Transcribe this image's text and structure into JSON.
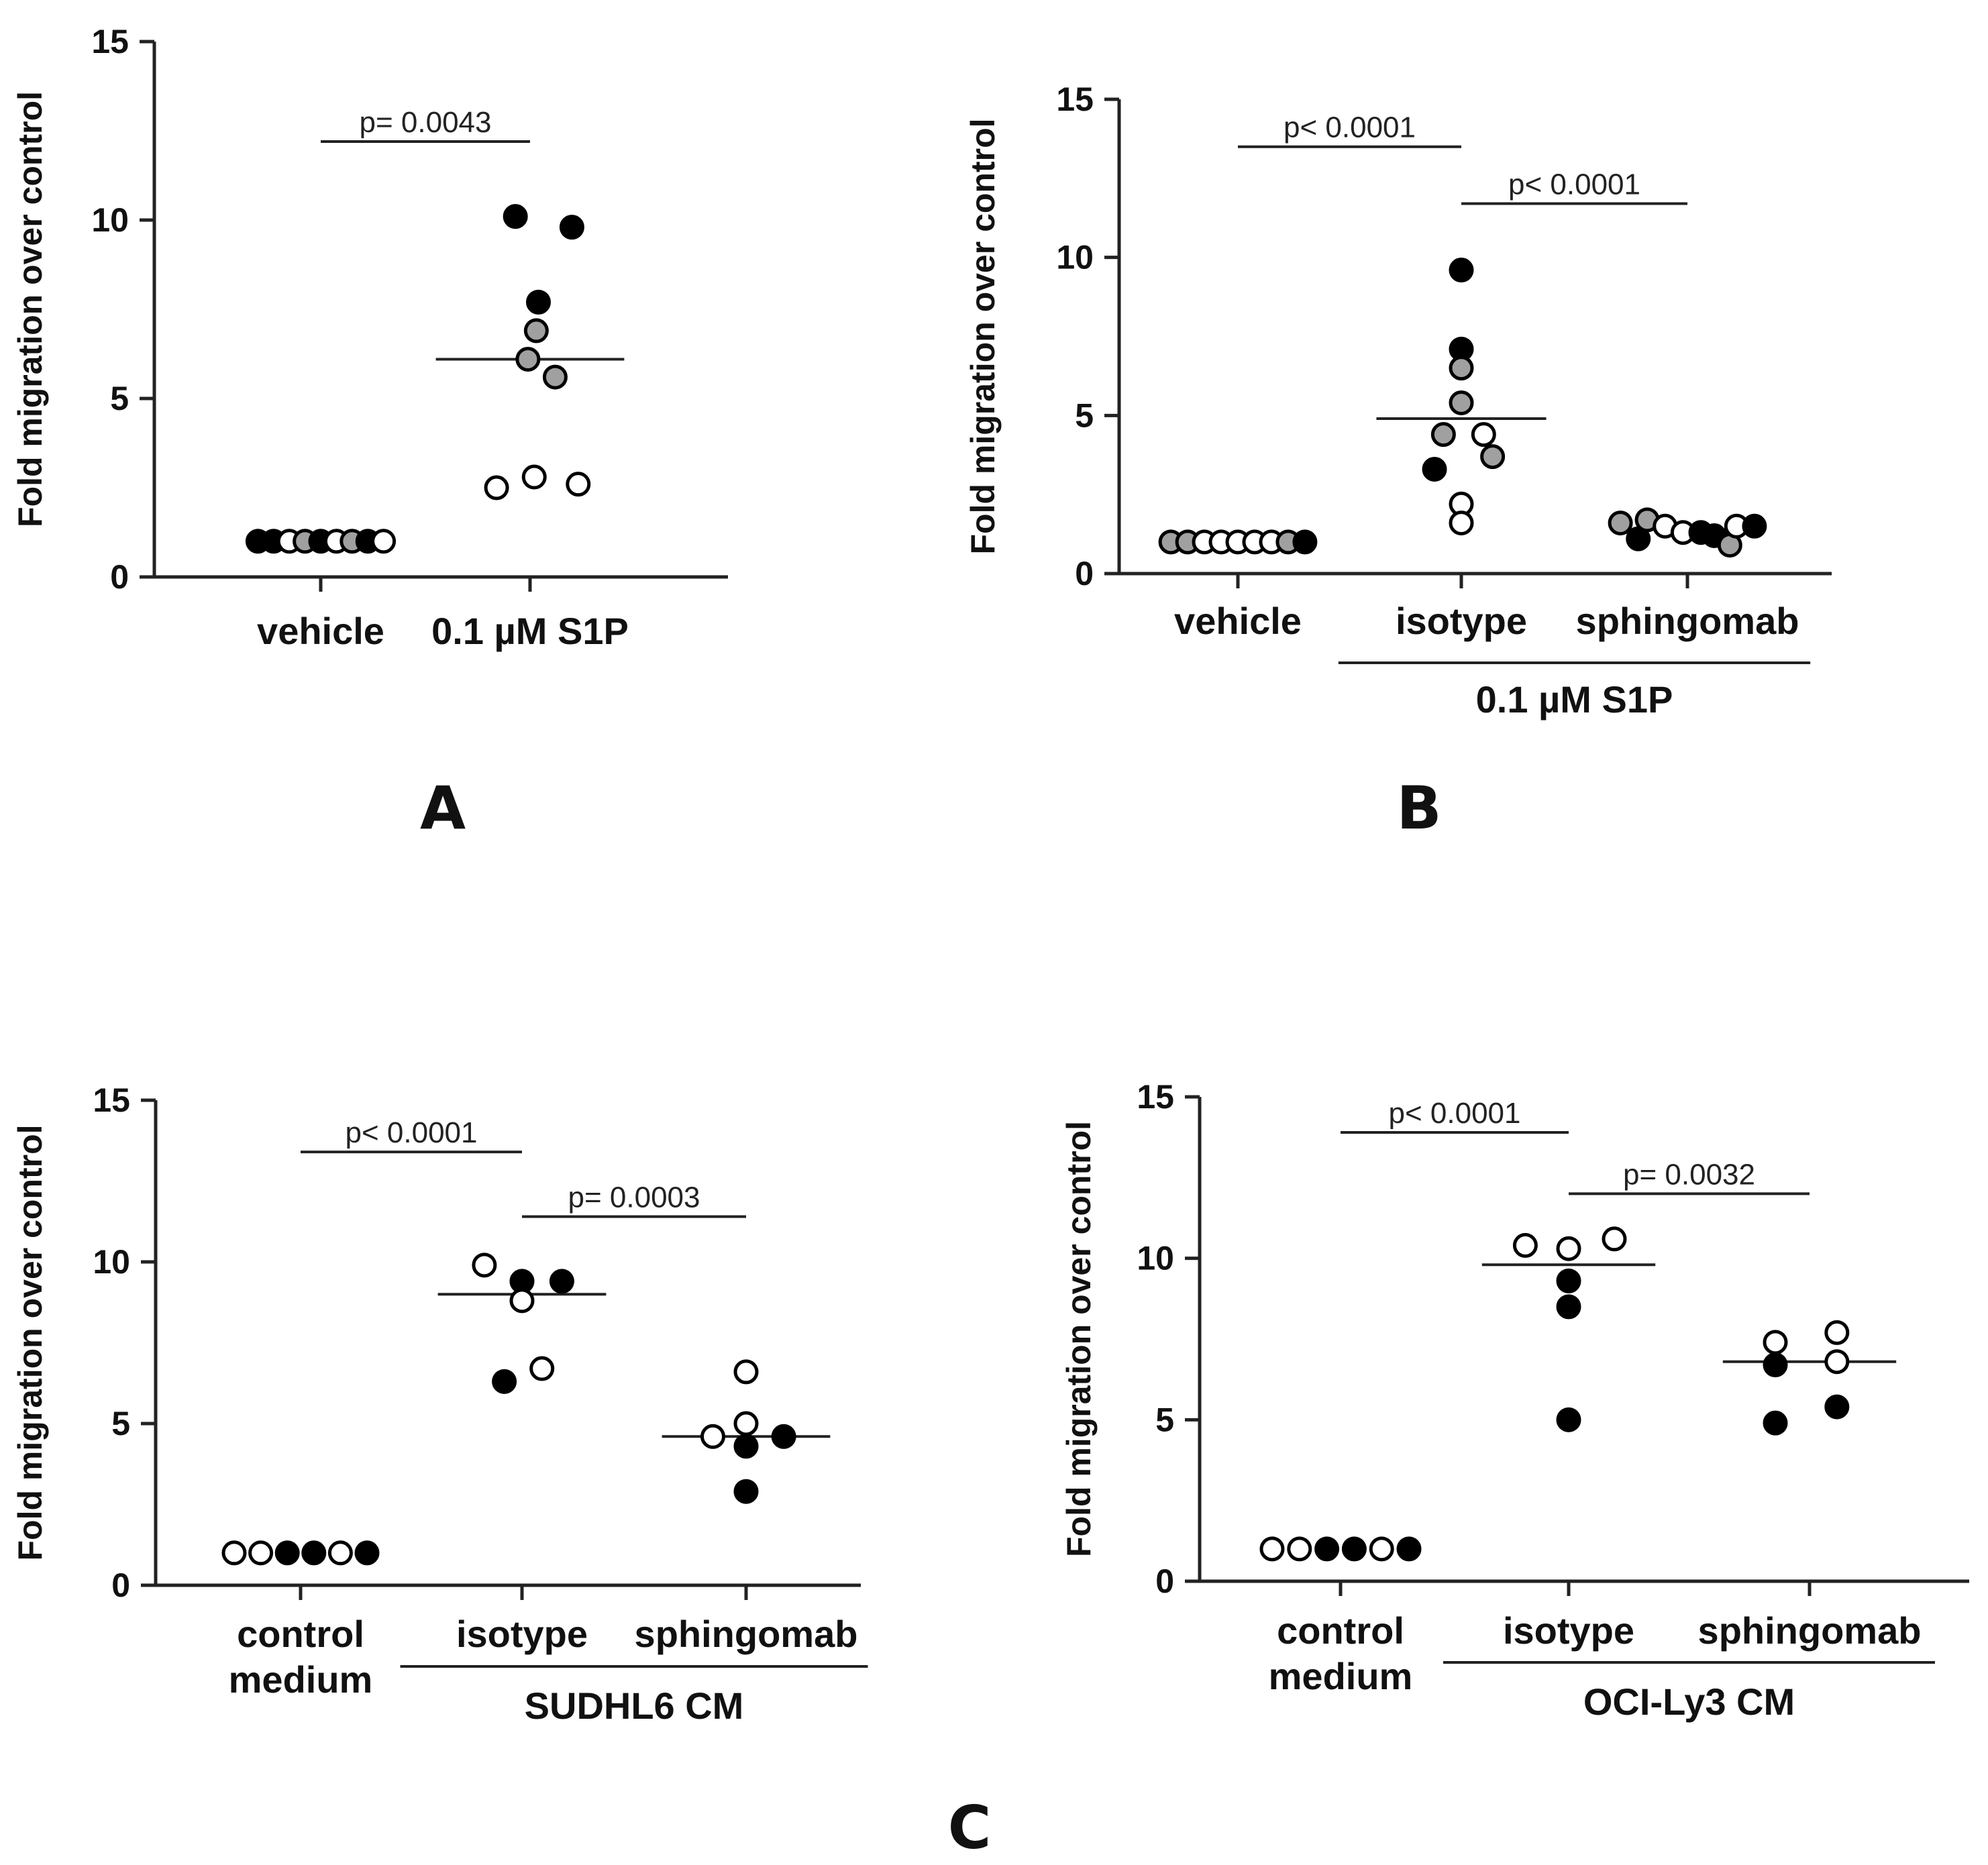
{
  "figure": {
    "letters": {
      "A": "A",
      "B": "B",
      "C": "C"
    }
  },
  "legend_colors": {
    "black": "#000000",
    "gray": "#a0a0a0",
    "open": "#ffffff"
  },
  "chart_data": [
    {
      "id": "A",
      "type": "scatter",
      "ylabel": "Fold migration over control",
      "ylim": [
        0,
        15
      ],
      "yticks": [
        0,
        5,
        10,
        15
      ],
      "categories": [
        "vehicle",
        "0.1 µM S1P"
      ],
      "category_lines": [
        [
          "vehicle"
        ],
        [
          "0.1 µM S1P"
        ]
      ],
      "group_label": null,
      "points": [
        {
          "cat": 0,
          "dx": -0.3,
          "y": 1.0,
          "fill": "black"
        },
        {
          "cat": 0,
          "dx": -0.225,
          "y": 1.0,
          "fill": "black"
        },
        {
          "cat": 0,
          "dx": -0.15,
          "y": 1.0,
          "fill": "open"
        },
        {
          "cat": 0,
          "dx": -0.075,
          "y": 1.0,
          "fill": "gray"
        },
        {
          "cat": 0,
          "dx": 0.0,
          "y": 1.0,
          "fill": "black"
        },
        {
          "cat": 0,
          "dx": 0.075,
          "y": 1.0,
          "fill": "open"
        },
        {
          "cat": 0,
          "dx": 0.15,
          "y": 1.0,
          "fill": "gray"
        },
        {
          "cat": 0,
          "dx": 0.225,
          "y": 1.0,
          "fill": "black"
        },
        {
          "cat": 0,
          "dx": 0.3,
          "y": 1.0,
          "fill": "open"
        },
        {
          "cat": 1,
          "dx": -0.07,
          "y": 10.1,
          "fill": "black"
        },
        {
          "cat": 1,
          "dx": 0.2,
          "y": 9.8,
          "fill": "black"
        },
        {
          "cat": 1,
          "dx": 0.04,
          "y": 7.7,
          "fill": "black"
        },
        {
          "cat": 1,
          "dx": 0.03,
          "y": 6.9,
          "fill": "gray"
        },
        {
          "cat": 1,
          "dx": -0.01,
          "y": 6.1,
          "fill": "gray"
        },
        {
          "cat": 1,
          "dx": 0.12,
          "y": 5.6,
          "fill": "gray"
        },
        {
          "cat": 1,
          "dx": -0.16,
          "y": 2.5,
          "fill": "open"
        },
        {
          "cat": 1,
          "dx": 0.02,
          "y": 2.8,
          "fill": "open"
        },
        {
          "cat": 1,
          "dx": 0.23,
          "y": 2.6,
          "fill": "open"
        }
      ],
      "medians": [
        {
          "cat": 1,
          "y": 6.1,
          "half_width": 0.45
        }
      ],
      "brackets": [
        {
          "from": 0,
          "to": 1,
          "y": 12.2,
          "label": "p= 0.0043"
        }
      ]
    },
    {
      "id": "B",
      "type": "scatter",
      "ylabel": "Fold migration over control",
      "ylim": [
        0,
        15
      ],
      "yticks": [
        0,
        5,
        10,
        15
      ],
      "categories": [
        "vehicle",
        "isotype",
        "sphingomab"
      ],
      "category_lines": [
        [
          "vehicle"
        ],
        [
          "isotype"
        ],
        [
          "sphingomab"
        ]
      ],
      "group_label": {
        "text": "0.1 µM S1P",
        "from": 1,
        "to": 2
      },
      "points": [
        {
          "cat": 0,
          "dx": -0.3,
          "y": 1.0,
          "fill": "gray"
        },
        {
          "cat": 0,
          "dx": -0.225,
          "y": 1.0,
          "fill": "gray"
        },
        {
          "cat": 0,
          "dx": -0.15,
          "y": 1.0,
          "fill": "open"
        },
        {
          "cat": 0,
          "dx": -0.075,
          "y": 1.0,
          "fill": "open"
        },
        {
          "cat": 0,
          "dx": 0.0,
          "y": 1.0,
          "fill": "open"
        },
        {
          "cat": 0,
          "dx": 0.075,
          "y": 1.0,
          "fill": "open"
        },
        {
          "cat": 0,
          "dx": 0.15,
          "y": 1.0,
          "fill": "open"
        },
        {
          "cat": 0,
          "dx": 0.225,
          "y": 1.0,
          "fill": "gray"
        },
        {
          "cat": 0,
          "dx": 0.3,
          "y": 1.0,
          "fill": "black"
        },
        {
          "cat": 1,
          "dx": 0.0,
          "y": 9.6,
          "fill": "black"
        },
        {
          "cat": 1,
          "dx": 0.0,
          "y": 7.1,
          "fill": "black"
        },
        {
          "cat": 1,
          "dx": 0.0,
          "y": 6.5,
          "fill": "gray"
        },
        {
          "cat": 1,
          "dx": 0.0,
          "y": 5.4,
          "fill": "gray"
        },
        {
          "cat": 1,
          "dx": -0.08,
          "y": 4.4,
          "fill": "gray"
        },
        {
          "cat": 1,
          "dx": 0.1,
          "y": 4.4,
          "fill": "open"
        },
        {
          "cat": 1,
          "dx": 0.14,
          "y": 3.7,
          "fill": "gray"
        },
        {
          "cat": 1,
          "dx": -0.12,
          "y": 3.3,
          "fill": "black"
        },
        {
          "cat": 1,
          "dx": 0.0,
          "y": 2.2,
          "fill": "open"
        },
        {
          "cat": 1,
          "dx": 0.0,
          "y": 1.6,
          "fill": "open"
        },
        {
          "cat": 2,
          "dx": -0.3,
          "y": 1.6,
          "fill": "gray"
        },
        {
          "cat": 2,
          "dx": -0.22,
          "y": 1.1,
          "fill": "black"
        },
        {
          "cat": 2,
          "dx": -0.18,
          "y": 1.7,
          "fill": "gray"
        },
        {
          "cat": 2,
          "dx": -0.1,
          "y": 1.5,
          "fill": "open"
        },
        {
          "cat": 2,
          "dx": -0.02,
          "y": 1.3,
          "fill": "open"
        },
        {
          "cat": 2,
          "dx": 0.06,
          "y": 1.3,
          "fill": "black"
        },
        {
          "cat": 2,
          "dx": 0.12,
          "y": 1.2,
          "fill": "black"
        },
        {
          "cat": 2,
          "dx": 0.19,
          "y": 0.9,
          "fill": "gray"
        },
        {
          "cat": 2,
          "dx": 0.22,
          "y": 1.5,
          "fill": "open"
        },
        {
          "cat": 2,
          "dx": 0.3,
          "y": 1.5,
          "fill": "black"
        }
      ],
      "medians": [
        {
          "cat": 1,
          "y": 4.9,
          "half_width": 0.38
        }
      ],
      "brackets": [
        {
          "from": 0,
          "to": 1,
          "y": 13.5,
          "label": "p< 0.0001"
        },
        {
          "from": 1,
          "to": 2,
          "y": 11.7,
          "label": "p< 0.0001"
        }
      ]
    },
    {
      "id": "C1",
      "type": "scatter",
      "ylabel": "Fold migration over control",
      "ylim": [
        0,
        15
      ],
      "yticks": [
        0,
        5,
        10,
        15
      ],
      "categories": [
        "control medium",
        "isotype",
        "sphingomab"
      ],
      "category_lines": [
        [
          "control",
          "medium"
        ],
        [
          "isotype"
        ],
        [
          "sphingomab"
        ]
      ],
      "group_label": {
        "text": "SUDHL6 CM",
        "from": 1,
        "to": 2
      },
      "points": [
        {
          "cat": 0,
          "dx": -0.3,
          "y": 1.0,
          "fill": "open"
        },
        {
          "cat": 0,
          "dx": -0.18,
          "y": 1.0,
          "fill": "open"
        },
        {
          "cat": 0,
          "dx": -0.06,
          "y": 1.0,
          "fill": "black"
        },
        {
          "cat": 0,
          "dx": 0.06,
          "y": 1.0,
          "fill": "black"
        },
        {
          "cat": 0,
          "dx": 0.18,
          "y": 1.0,
          "fill": "open"
        },
        {
          "cat": 0,
          "dx": 0.3,
          "y": 1.0,
          "fill": "black"
        },
        {
          "cat": 1,
          "dx": -0.17,
          "y": 9.9,
          "fill": "open"
        },
        {
          "cat": 1,
          "dx": 0.0,
          "y": 9.4,
          "fill": "black"
        },
        {
          "cat": 1,
          "dx": 0.18,
          "y": 9.4,
          "fill": "black"
        },
        {
          "cat": 1,
          "dx": 0.0,
          "y": 8.8,
          "fill": "open"
        },
        {
          "cat": 1,
          "dx": -0.08,
          "y": 6.3,
          "fill": "black"
        },
        {
          "cat": 1,
          "dx": 0.09,
          "y": 6.7,
          "fill": "open"
        },
        {
          "cat": 2,
          "dx": 0.0,
          "y": 6.6,
          "fill": "open"
        },
        {
          "cat": 2,
          "dx": 0.0,
          "y": 5.0,
          "fill": "open"
        },
        {
          "cat": 2,
          "dx": -0.15,
          "y": 4.6,
          "fill": "open"
        },
        {
          "cat": 2,
          "dx": 0.17,
          "y": 4.6,
          "fill": "black"
        },
        {
          "cat": 2,
          "dx": 0.0,
          "y": 4.3,
          "fill": "black"
        },
        {
          "cat": 2,
          "dx": 0.0,
          "y": 2.9,
          "fill": "black"
        }
      ],
      "medians": [
        {
          "cat": 1,
          "y": 9.0,
          "half_width": 0.38
        },
        {
          "cat": 2,
          "y": 4.6,
          "half_width": 0.38
        }
      ],
      "brackets": [
        {
          "from": 0,
          "to": 1,
          "y": 13.4,
          "label": "p< 0.0001"
        },
        {
          "from": 1,
          "to": 2,
          "y": 11.4,
          "label": "p= 0.0003"
        }
      ]
    },
    {
      "id": "C2",
      "type": "scatter",
      "ylabel": "Fold migration over control",
      "ylim": [
        0,
        15
      ],
      "yticks": [
        0,
        5,
        10,
        15
      ],
      "categories": [
        "control medium",
        "isotype",
        "sphingomab"
      ],
      "category_lines": [
        [
          "control",
          "medium"
        ],
        [
          "isotype"
        ],
        [
          "sphingomab"
        ]
      ],
      "group_label": {
        "text": "OCI-Ly3 CM",
        "from": 1,
        "to": 2
      },
      "points": [
        {
          "cat": 0,
          "dx": -0.3,
          "y": 1.0,
          "fill": "open"
        },
        {
          "cat": 0,
          "dx": -0.18,
          "y": 1.0,
          "fill": "open"
        },
        {
          "cat": 0,
          "dx": -0.06,
          "y": 1.0,
          "fill": "black"
        },
        {
          "cat": 0,
          "dx": 0.06,
          "y": 1.0,
          "fill": "black"
        },
        {
          "cat": 0,
          "dx": 0.18,
          "y": 1.0,
          "fill": "open"
        },
        {
          "cat": 0,
          "dx": 0.3,
          "y": 1.0,
          "fill": "black"
        },
        {
          "cat": 1,
          "dx": -0.19,
          "y": 10.4,
          "fill": "open"
        },
        {
          "cat": 1,
          "dx": 0.0,
          "y": 10.3,
          "fill": "open"
        },
        {
          "cat": 1,
          "dx": 0.2,
          "y": 10.6,
          "fill": "open"
        },
        {
          "cat": 1,
          "dx": 0.0,
          "y": 9.3,
          "fill": "black"
        },
        {
          "cat": 1,
          "dx": 0.0,
          "y": 8.5,
          "fill": "black"
        },
        {
          "cat": 1,
          "dx": 0.0,
          "y": 5.0,
          "fill": "black"
        },
        {
          "cat": 2,
          "dx": -0.15,
          "y": 7.4,
          "fill": "open"
        },
        {
          "cat": 2,
          "dx": 0.12,
          "y": 7.7,
          "fill": "open"
        },
        {
          "cat": 2,
          "dx": -0.15,
          "y": 6.7,
          "fill": "black"
        },
        {
          "cat": 2,
          "dx": 0.12,
          "y": 6.8,
          "fill": "open"
        },
        {
          "cat": 2,
          "dx": -0.15,
          "y": 4.9,
          "fill": "black"
        },
        {
          "cat": 2,
          "dx": 0.12,
          "y": 5.4,
          "fill": "black"
        }
      ],
      "medians": [
        {
          "cat": 1,
          "y": 9.8,
          "half_width": 0.38
        },
        {
          "cat": 2,
          "y": 6.8,
          "half_width": 0.38
        }
      ],
      "brackets": [
        {
          "from": 0,
          "to": 1,
          "y": 13.9,
          "label": "p< 0.0001"
        },
        {
          "from": 1,
          "to": 2,
          "y": 12.0,
          "label": "p= 0.0032"
        }
      ]
    }
  ]
}
